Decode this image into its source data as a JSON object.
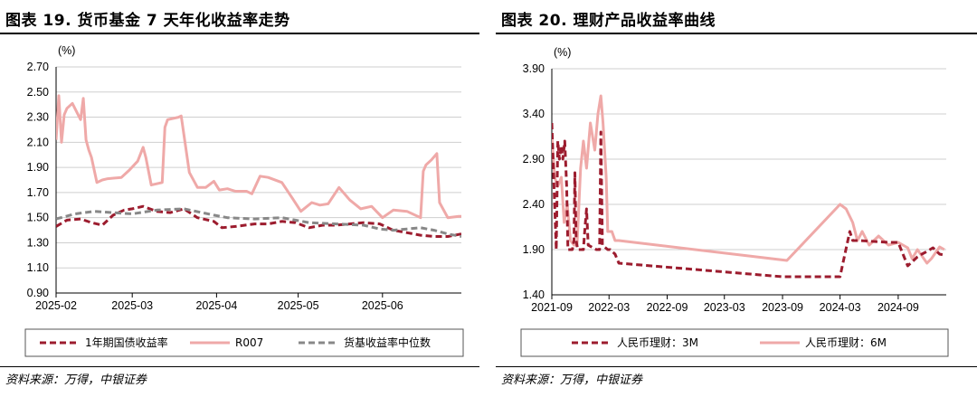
{
  "left": {
    "title": "图表 19. 货币基金 7 天年化收益率走势",
    "source": "资料来源：万得，中银证券",
    "chart_data": {
      "type": "line",
      "ylabel": "(%)",
      "ylim": [
        0.9,
        2.7
      ],
      "yticks": [
        "0.90",
        "1.10",
        "1.30",
        "1.50",
        "1.70",
        "1.90",
        "2.10",
        "2.30",
        "2.50",
        "2.70"
      ],
      "xlim": [
        "2025-02-01",
        "2025-06-30"
      ],
      "xticks": [
        "2025-02",
        "2025-03",
        "2025-04",
        "2025-05",
        "2025-06"
      ],
      "grid": "horizontal",
      "legend": "bottom",
      "series": [
        {
          "name": "1年期国债收益率",
          "color": "#9c1c2e",
          "style": "dashed",
          "x": [
            "2025-02-01",
            "2025-02-05",
            "2025-02-10",
            "2025-02-14",
            "2025-02-18",
            "2025-02-22",
            "2025-02-26",
            "2025-03-01",
            "2025-03-05",
            "2025-03-10",
            "2025-03-15",
            "2025-03-20",
            "2025-03-25",
            "2025-03-31",
            "2025-04-03",
            "2025-04-08",
            "2025-04-15",
            "2025-04-20",
            "2025-04-25",
            "2025-04-30",
            "2025-05-05",
            "2025-05-10",
            "2025-05-15",
            "2025-05-20",
            "2025-05-25",
            "2025-05-31",
            "2025-06-05",
            "2025-06-10",
            "2025-06-15",
            "2025-06-20",
            "2025-06-25",
            "2025-06-30"
          ],
          "y": [
            1.43,
            1.48,
            1.49,
            1.46,
            1.44,
            1.52,
            1.56,
            1.57,
            1.59,
            1.55,
            1.54,
            1.57,
            1.5,
            1.47,
            1.42,
            1.43,
            1.45,
            1.45,
            1.47,
            1.46,
            1.42,
            1.44,
            1.44,
            1.45,
            1.46,
            1.45,
            1.4,
            1.38,
            1.36,
            1.35,
            1.35,
            1.37
          ]
        },
        {
          "name": "R007",
          "color": "#efa9a8",
          "style": "solid",
          "x": [
            "2025-02-01",
            "2025-02-02",
            "2025-02-03",
            "2025-02-04",
            "2025-02-05",
            "2025-02-07",
            "2025-02-10",
            "2025-02-11",
            "2025-02-12",
            "2025-02-13",
            "2025-02-14",
            "2025-02-16",
            "2025-02-18",
            "2025-02-20",
            "2025-02-25",
            "2025-02-28",
            "2025-03-03",
            "2025-03-05",
            "2025-03-06",
            "2025-03-08",
            "2025-03-12",
            "2025-03-13",
            "2025-03-14",
            "2025-03-18",
            "2025-03-19",
            "2025-03-20",
            "2025-03-22",
            "2025-03-25",
            "2025-03-28",
            "2025-03-31",
            "2025-04-02",
            "2025-04-05",
            "2025-04-08",
            "2025-04-12",
            "2025-04-14",
            "2025-04-17",
            "2025-04-20",
            "2025-04-25",
            "2025-04-29",
            "2025-05-02",
            "2025-05-06",
            "2025-05-09",
            "2025-05-12",
            "2025-05-16",
            "2025-05-20",
            "2025-05-24",
            "2025-05-28",
            "2025-06-01",
            "2025-06-05",
            "2025-06-10",
            "2025-06-15",
            "2025-06-16",
            "2025-06-17",
            "2025-06-19",
            "2025-06-21",
            "2025-06-22",
            "2025-06-25",
            "2025-06-29",
            "2025-06-30"
          ],
          "y": [
            2.12,
            2.47,
            2.1,
            2.32,
            2.37,
            2.41,
            2.28,
            2.45,
            2.12,
            2.04,
            1.98,
            1.78,
            1.8,
            1.81,
            1.82,
            1.88,
            1.95,
            2.06,
            1.98,
            1.76,
            1.78,
            2.22,
            2.28,
            2.3,
            2.31,
            2.16,
            1.86,
            1.74,
            1.74,
            1.79,
            1.72,
            1.73,
            1.71,
            1.71,
            1.69,
            1.83,
            1.82,
            1.78,
            1.65,
            1.55,
            1.62,
            1.6,
            1.61,
            1.74,
            1.64,
            1.57,
            1.59,
            1.5,
            1.56,
            1.55,
            1.5,
            1.87,
            1.92,
            1.96,
            2.01,
            1.62,
            1.5,
            1.51,
            1.51
          ]
        },
        {
          "name": "货基收益率中位数",
          "color": "#888888",
          "style": "dashed",
          "x": [
            "2025-02-01",
            "2025-02-08",
            "2025-02-15",
            "2025-02-22",
            "2025-03-01",
            "2025-03-10",
            "2025-03-20",
            "2025-03-31",
            "2025-04-05",
            "2025-04-15",
            "2025-04-25",
            "2025-04-30",
            "2025-05-05",
            "2025-05-15",
            "2025-05-25",
            "2025-05-31",
            "2025-06-05",
            "2025-06-10",
            "2025-06-15",
            "2025-06-20",
            "2025-06-25",
            "2025-06-30"
          ],
          "y": [
            1.49,
            1.53,
            1.55,
            1.54,
            1.53,
            1.56,
            1.57,
            1.52,
            1.5,
            1.49,
            1.5,
            1.48,
            1.46,
            1.45,
            1.44,
            1.41,
            1.4,
            1.41,
            1.42,
            1.4,
            1.37,
            1.35
          ]
        }
      ]
    }
  },
  "right": {
    "title": "图表 20. 理财产品收益率曲线",
    "source": "资料来源：万得，中银证券",
    "chart_data": {
      "type": "line",
      "ylabel": "(%)",
      "ylim": [
        1.4,
        3.9
      ],
      "yticks": [
        "1.40",
        "1.90",
        "2.40",
        "2.90",
        "3.40",
        "3.90"
      ],
      "xlim": [
        "2021-09-01",
        "2025-01-31"
      ],
      "xticks": [
        "2021-09",
        "2022-03",
        "2022-09",
        "2023-03",
        "2023-09",
        "2024-03",
        "2024-09"
      ],
      "grid": "horizontal",
      "legend": "bottom",
      "series": [
        {
          "name": "人民币理财：3M",
          "color": "#9c1c2e",
          "style": "dashed",
          "x": [
            "2021-09-01",
            "2021-09-08",
            "2021-09-15",
            "2021-09-20",
            "2021-09-25",
            "2021-10-01",
            "2021-10-06",
            "2021-10-12",
            "2021-10-18",
            "2021-10-22",
            "2021-11-05",
            "2021-11-10",
            "2021-11-13",
            "2021-11-17",
            "2021-11-22",
            "2021-12-10",
            "2021-12-15",
            "2021-12-20",
            "2021-12-25",
            "2022-01-20",
            "2022-01-30",
            "2022-02-03",
            "2022-02-08",
            "2022-02-25",
            "2022-03-05",
            "2022-03-20",
            "2022-04-01",
            "2023-09-01",
            "2024-03-01",
            "2024-03-10",
            "2024-04-01",
            "2024-04-10",
            "2024-05-01",
            "2024-08-01",
            "2024-09-01",
            "2024-10-01",
            "2024-11-01",
            "2024-11-15",
            "2024-12-01",
            "2024-12-20",
            "2025-01-10",
            "2025-01-25"
          ],
          "y": [
            3.3,
            2.6,
            1.9,
            3.1,
            2.9,
            3.05,
            2.9,
            3.1,
            2.6,
            1.9,
            1.9,
            2.0,
            2.75,
            2.0,
            1.9,
            1.9,
            2.15,
            2.35,
            1.95,
            1.9,
            1.9,
            3.2,
            1.95,
            1.9,
            1.9,
            1.85,
            1.75,
            1.6,
            1.6,
            1.75,
            2.1,
            2.0,
            2.0,
            1.98,
            1.98,
            1.72,
            1.82,
            1.85,
            1.88,
            1.92,
            1.85,
            1.84
          ]
        },
        {
          "name": "人民币理财：6M",
          "color": "#efa9a8",
          "style": "solid",
          "x": [
            "2021-09-01",
            "2021-09-10",
            "2021-09-20",
            "2021-10-01",
            "2021-10-10",
            "2021-10-20",
            "2021-10-30",
            "2021-11-10",
            "2021-11-20",
            "2021-12-01",
            "2021-12-10",
            "2021-12-20",
            "2022-01-01",
            "2022-01-15",
            "2022-01-25",
            "2022-02-03",
            "2022-02-10",
            "2022-02-20",
            "2022-02-25",
            "2022-03-10",
            "2022-03-20",
            "2022-04-01",
            "2023-09-15",
            "2024-03-01",
            "2024-03-20",
            "2024-04-10",
            "2024-04-25",
            "2024-05-10",
            "2024-06-01",
            "2024-07-01",
            "2024-08-01",
            "2024-09-01",
            "2024-10-01",
            "2024-10-15",
            "2024-11-01",
            "2024-12-01",
            "2024-12-15",
            "2025-01-10",
            "2025-01-25"
          ],
          "y": [
            3.15,
            2.7,
            2.6,
            2.7,
            2.2,
            2.4,
            2.0,
            1.95,
            1.95,
            2.8,
            3.1,
            2.8,
            3.3,
            3.0,
            3.4,
            3.6,
            3.3,
            2.7,
            2.1,
            2.1,
            2.0,
            2.0,
            1.78,
            2.4,
            2.35,
            2.2,
            2.0,
            2.1,
            1.95,
            2.05,
            1.95,
            1.98,
            1.92,
            1.8,
            1.9,
            1.75,
            1.8,
            1.93,
            1.9
          ]
        }
      ]
    }
  }
}
